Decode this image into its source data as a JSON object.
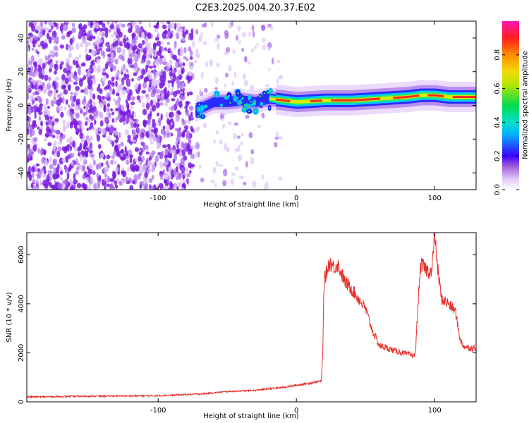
{
  "title": "C2E3.2025.004.20.37.E02",
  "chart_data": [
    {
      "type": "heatmap",
      "xlabel": "Height of straight line (km)",
      "ylabel": "Frequency (Hz)",
      "xlim": [
        -195,
        130
      ],
      "ylim": [
        -50,
        50
      ],
      "xticks": [
        -100,
        0,
        100
      ],
      "xtick_labels": [
        "-100",
        "0",
        "100"
      ],
      "yticks": [
        -40,
        -20,
        0,
        20,
        40
      ],
      "ytick_labels": [
        "-40",
        "-20",
        "0",
        "20",
        "40"
      ],
      "grid": false,
      "ridge": {
        "x": [
          -73,
          -60,
          -50,
          -40,
          -30,
          -20,
          -10,
          0,
          20,
          40,
          60,
          80,
          90,
          100,
          110,
          130
        ],
        "y": [
          -3,
          2,
          2,
          3,
          2,
          4,
          3,
          2,
          3,
          3,
          4,
          5,
          6,
          6,
          5,
          5
        ]
      },
      "colorbar": {
        "label": "Normalized spectral amplitude",
        "range": [
          0,
          1
        ],
        "ticks": [
          0.0,
          0.2,
          0.4,
          0.6,
          0.8
        ],
        "tick_labels": [
          "0.0",
          "0.2",
          "0.4",
          "0.6",
          "0.8"
        ]
      }
    },
    {
      "type": "line",
      "xlabel": "Height of straight line (km)",
      "ylabel": "SNR (10 * v/v)",
      "xlim": [
        -195,
        130
      ],
      "ylim": [
        0,
        6900
      ],
      "xticks": [
        -100,
        0,
        100
      ],
      "xtick_labels": [
        "-100",
        "0",
        "100"
      ],
      "yticks": [
        0,
        2000,
        4000,
        6000
      ],
      "ytick_labels": [
        "0",
        "2000",
        "4000",
        "6000"
      ],
      "grid": false,
      "color": "#e8302a",
      "series": [
        {
          "x": [
            -195,
            -150,
            -100,
            -70,
            -50,
            -30,
            -10,
            5,
            18,
            19,
            20,
            24,
            27,
            30,
            35,
            40,
            45,
            50,
            55,
            60,
            70,
            80,
            84,
            86,
            88,
            90,
            95,
            98,
            100,
            102,
            105,
            110,
            115,
            118,
            120,
            125,
            130
          ],
          "y": [
            200,
            230,
            250,
            320,
            420,
            470,
            590,
            720,
            850,
            1900,
            4900,
            5700,
            5500,
            5600,
            4900,
            4600,
            4200,
            3800,
            2900,
            2300,
            2100,
            1950,
            1900,
            1900,
            4000,
            5600,
            5350,
            5300,
            6900,
            5500,
            4200,
            4000,
            3700,
            2700,
            2300,
            2200,
            2200
          ]
        }
      ]
    }
  ]
}
